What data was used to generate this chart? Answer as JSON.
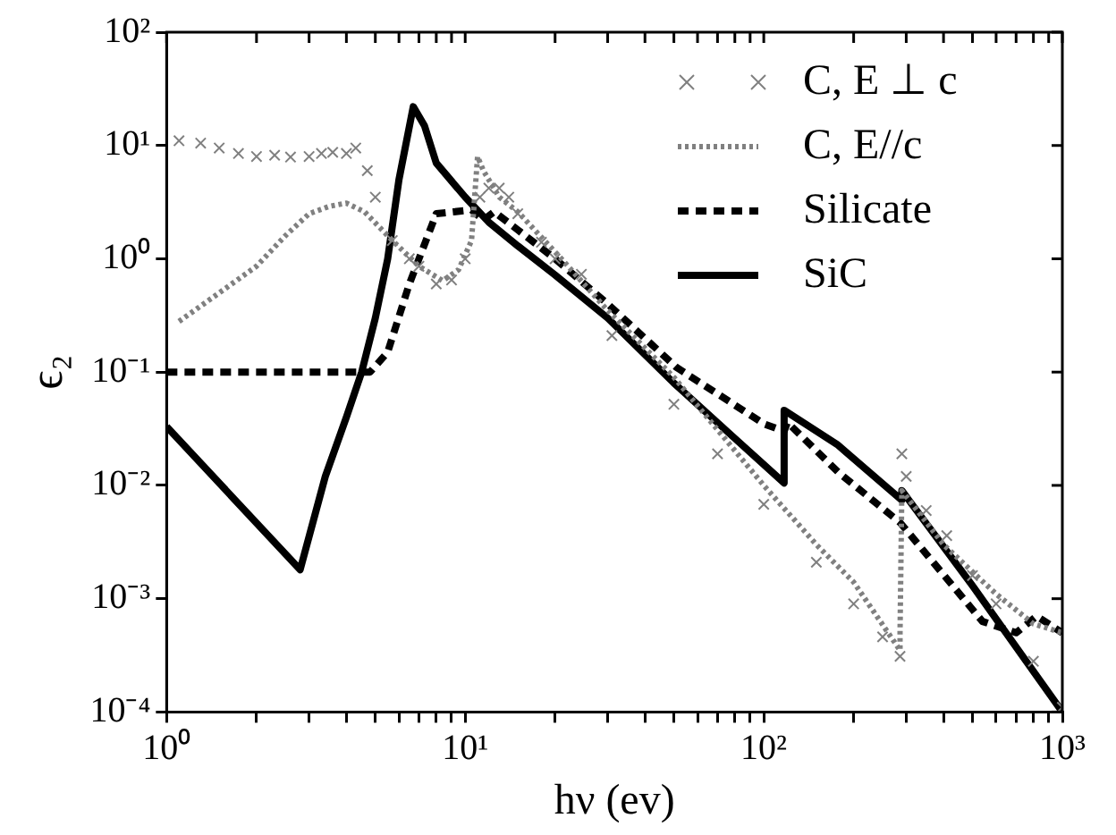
{
  "chart_data": {
    "type": "line",
    "xlabel": "hν (ev)",
    "ylabel": "ϵ₂",
    "log": "xy",
    "grid": false,
    "legend": "top right",
    "xlim": [
      1,
      1000
    ],
    "ylim": [
      0.0001,
      100
    ],
    "xticks": [
      {
        "value": 1,
        "label": "10⁰"
      },
      {
        "value": 2,
        "label": null
      },
      {
        "value": 3,
        "label": null
      },
      {
        "value": 4,
        "label": null
      },
      {
        "value": 5,
        "label": null
      },
      {
        "value": 6,
        "label": null
      },
      {
        "value": 7,
        "label": null
      },
      {
        "value": 8,
        "label": null
      },
      {
        "value": 9,
        "label": null
      },
      {
        "value": 10,
        "label": "10¹"
      },
      {
        "value": 20,
        "label": null
      },
      {
        "value": 30,
        "label": null
      },
      {
        "value": 40,
        "label": null
      },
      {
        "value": 50,
        "label": null
      },
      {
        "value": 60,
        "label": null
      },
      {
        "value": 70,
        "label": null
      },
      {
        "value": 80,
        "label": null
      },
      {
        "value": 90,
        "label": null
      },
      {
        "value": 100,
        "label": "10²"
      },
      {
        "value": 200,
        "label": null
      },
      {
        "value": 300,
        "label": null
      },
      {
        "value": 400,
        "label": null
      },
      {
        "value": 500,
        "label": null
      },
      {
        "value": 600,
        "label": null
      },
      {
        "value": 700,
        "label": null
      },
      {
        "value": 800,
        "label": null
      },
      {
        "value": 900,
        "label": null
      },
      {
        "value": 1000,
        "label": "10³"
      }
    ],
    "yticks": [
      {
        "value": 0.0001,
        "label": "10⁻⁴"
      },
      {
        "value": 0.001,
        "label": "10⁻³"
      },
      {
        "value": 0.01,
        "label": "10⁻²"
      },
      {
        "value": 0.1,
        "label": "10⁻¹"
      },
      {
        "value": 1,
        "label": "10⁰"
      },
      {
        "value": 10,
        "label": "10¹"
      },
      {
        "value": 100,
        "label": "10²"
      }
    ],
    "series": [
      {
        "name": "C, E ⊥ c",
        "type": "scatter",
        "marker": "cross",
        "color": "#808080",
        "x": [
          1.1,
          1.3,
          1.5,
          1.74,
          2,
          2.3,
          2.6,
          3,
          3.3,
          3.6,
          4,
          4.3,
          4.7,
          5,
          5.7,
          6.5,
          7,
          8,
          9,
          10,
          11.2,
          12,
          13,
          14,
          15,
          18,
          20,
          24.5,
          31,
          50,
          70,
          100,
          150,
          200,
          250,
          286,
          290,
          300,
          350,
          410,
          500,
          600,
          800,
          1000
        ],
        "values": [
          11,
          10.5,
          9.5,
          8.5,
          8,
          8.2,
          7.9,
          8,
          8.5,
          8.7,
          8.5,
          9.5,
          6,
          3.5,
          1.45,
          1,
          0.86,
          0.6,
          0.65,
          1,
          3.5,
          4.2,
          4.2,
          3.5,
          2.5,
          1.4,
          1,
          0.73,
          0.21,
          0.052,
          0.019,
          0.0068,
          0.0021,
          0.0009,
          0.00046,
          0.00031,
          0.019,
          0.012,
          0.006,
          0.0036,
          0.0016,
          0.0009,
          0.00028,
          0.00011
        ]
      },
      {
        "name": "C, E//c",
        "line_style": "dotted",
        "marker": "none",
        "color": "#808080",
        "x": [
          1.1,
          1.5,
          2,
          2.5,
          3,
          3.5,
          4,
          4.6,
          5.7,
          7,
          8.4,
          9.5,
          10.5,
          11,
          11.5,
          13,
          15,
          21,
          30,
          50,
          100,
          150,
          200,
          286,
          286,
          290,
          400,
          600,
          800,
          1000
        ],
        "values": [
          0.28,
          0.5,
          0.86,
          1.6,
          2.5,
          2.9,
          3.1,
          2.6,
          1.45,
          0.86,
          0.64,
          0.8,
          1.45,
          8,
          6,
          3.5,
          2.6,
          1,
          0.35,
          0.09,
          0.01,
          0.003,
          0.0014,
          0.00035,
          0.0005,
          0.009,
          0.003,
          0.0011,
          0.0006,
          0.0005
        ]
      },
      {
        "name": "Silicate",
        "line_style": "dashed",
        "marker": "none",
        "color": "#000000",
        "x": [
          1,
          4.8,
          5.5,
          6.5,
          8,
          10.5,
          11.5,
          12.5,
          15,
          20,
          30,
          51,
          100,
          117,
          120,
          178,
          286,
          540,
          700,
          820,
          1000
        ],
        "values": [
          0.1,
          0.1,
          0.15,
          0.6,
          2.5,
          2.7,
          2.2,
          2.6,
          1.8,
          1,
          0.4,
          0.11,
          0.035,
          0.03,
          0.036,
          0.013,
          0.0047,
          0.00063,
          0.0005,
          0.0007,
          0.0005
        ]
      },
      {
        "name": "SiC",
        "line_style": "solid",
        "marker": "none",
        "color": "#000000",
        "x": [
          1,
          2.8,
          3.4,
          4,
          4.5,
          5,
          5.5,
          6,
          6.7,
          7.3,
          8,
          10,
          12,
          15,
          20,
          30,
          50,
          80,
          117,
          117,
          176,
          290,
          290,
          500,
          1000
        ],
        "values": [
          0.033,
          0.0018,
          0.012,
          0.04,
          0.1,
          0.3,
          1,
          5,
          22,
          15,
          7,
          3.5,
          2.1,
          1.3,
          0.72,
          0.3,
          0.08,
          0.026,
          0.0105,
          0.046,
          0.023,
          0.0074,
          0.009,
          0.0013,
          0.0001
        ]
      }
    ]
  }
}
